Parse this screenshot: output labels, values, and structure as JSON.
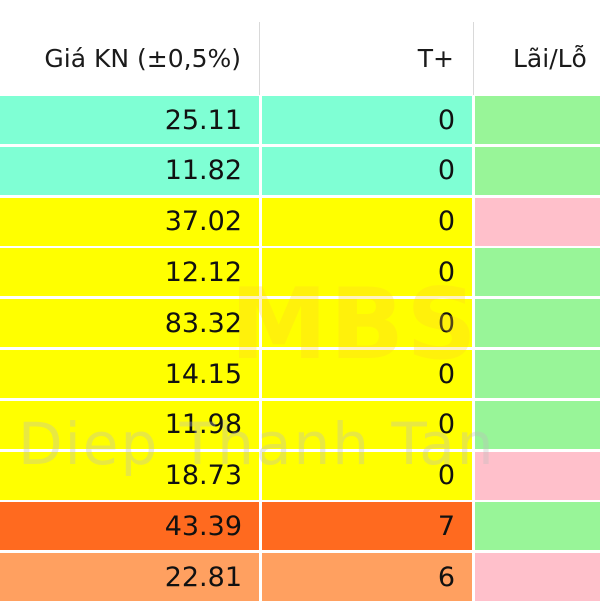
{
  "header": {
    "price_col": "Giá KN (±0,5%)",
    "t_col": "T+",
    "pl_col": "Lãi/Lỗ"
  },
  "rows": [
    {
      "price": "25.11",
      "t": "0",
      "pl": "",
      "row_color": "#7fffd4",
      "pl_color": "#98f598"
    },
    {
      "price": "11.82",
      "t": "0",
      "pl": "",
      "row_color": "#7fffd4",
      "pl_color": "#98f598"
    },
    {
      "price": "37.02",
      "t": "0",
      "pl": "-",
      "row_color": "#ffff00",
      "pl_color": "#ffc0cb"
    },
    {
      "price": "12.12",
      "t": "0",
      "pl": "",
      "row_color": "#ffff00",
      "pl_color": "#98f598"
    },
    {
      "price": "83.32",
      "t": "0",
      "pl": "",
      "row_color": "#ffff00",
      "pl_color": "#98f598"
    },
    {
      "price": "14.15",
      "t": "0",
      "pl": "",
      "row_color": "#ffff00",
      "pl_color": "#98f598"
    },
    {
      "price": "11.98",
      "t": "0",
      "pl": "",
      "row_color": "#ffff00",
      "pl_color": "#98f598"
    },
    {
      "price": "18.73",
      "t": "0",
      "pl": "-",
      "row_color": "#ffff00",
      "pl_color": "#ffc0cb"
    },
    {
      "price": "43.39",
      "t": "7",
      "pl": "",
      "row_color": "#ff6a1f",
      "pl_color": "#98f598"
    },
    {
      "price": "22.81",
      "t": "6",
      "pl": "-",
      "row_color": "#ffa060",
      "pl_color": "#ffc0cb"
    }
  ],
  "watermark": {
    "logo": "MBS",
    "name": "Diep Thanh Tan"
  }
}
